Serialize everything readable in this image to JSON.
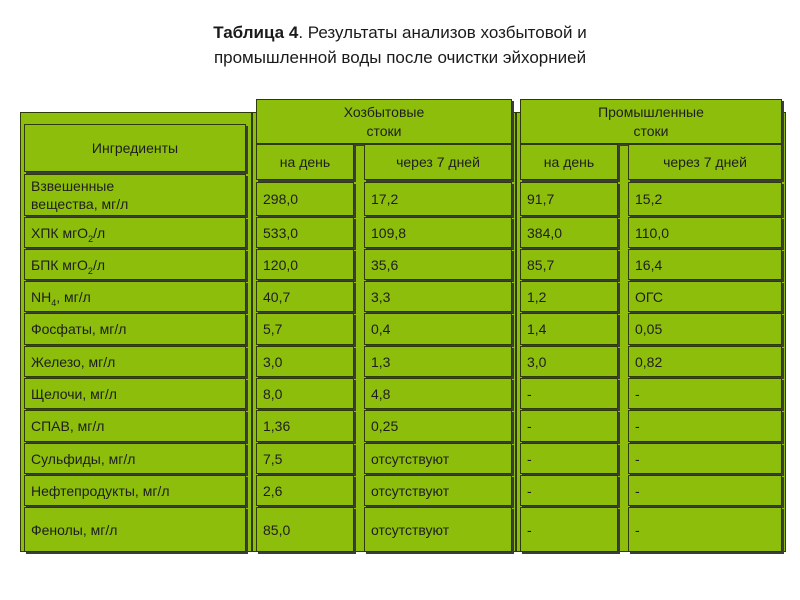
{
  "title": {
    "bold": "Таблица 4",
    "rest": ". Результаты анализов хозбытовой и",
    "line2": "промышленной воды после очистки эйхорнией"
  },
  "headers": {
    "ingredients": "Ингредиенты",
    "household_line1": "Хозбытовые",
    "household_line2": "стоки",
    "industrial_line1": "Промышленные",
    "industrial_line2": "стоки",
    "per_day": "на день",
    "after_7_days": "через 7 дней"
  },
  "rows": [
    {
      "label": "Взвешенные вещества, мг/л",
      "hd": "298,0",
      "h7": "17,2",
      "pd": "91,7",
      "p7": "15,2"
    },
    {
      "label_pre": "ХПК мгО",
      "label_sub": "2",
      "label_post": "/л",
      "hd": "533,0",
      "h7": "109,8",
      "pd": "384,0",
      "p7": "110,0"
    },
    {
      "label_pre": "БПК мгО",
      "label_sub": "2",
      "label_post": "/л",
      "hd": "120,0",
      "h7": "35,6",
      "pd": "85,7",
      "p7": "16,4"
    },
    {
      "label_pre": "NH",
      "label_sub": "4",
      "label_post": ", мг/л",
      "hd": "40,7",
      "h7": "3,3",
      "pd": "1,2",
      "p7": "ОГС"
    },
    {
      "label": "Фосфаты, мг/л",
      "hd": "5,7",
      "h7": "0,4",
      "pd": "1,4",
      "p7": "0,05"
    },
    {
      "label": "Железо, мг/л",
      "hd": "3,0",
      "h7": "1,3",
      "pd": "3,0",
      "p7": "0,82"
    },
    {
      "label": "Щелочи, мг/л",
      "hd": "8,0",
      "h7": "4,8",
      "pd": "-",
      "p7": "-"
    },
    {
      "label": "СПАВ, мг/л",
      "hd": "1,36",
      "h7": "0,25",
      "pd": "-",
      "p7": "-"
    },
    {
      "label": "Сульфиды, мг/л",
      "hd": "7,5",
      "h7": "отсутствуют",
      "pd": "-",
      "p7": "-"
    },
    {
      "label": "Нефтепродукты, мг/л",
      "hd": "2,6",
      "h7": "отсутствуют",
      "pd": "-",
      "p7": "-"
    },
    {
      "label": "Фенолы, мг/л",
      "hd": "85,0",
      "h7": "отсутствуют",
      "pd": "-",
      "p7": "-"
    }
  ],
  "colors": {
    "cell": "#8dbe0c",
    "border": "#2e3a0a"
  }
}
